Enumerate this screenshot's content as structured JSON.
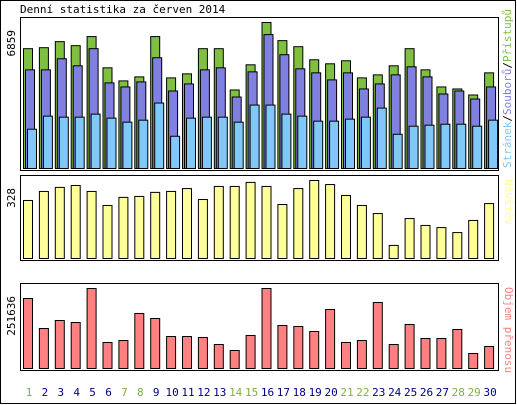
{
  "title": "Denní statistika za červen 2014",
  "legend_separator": "/",
  "chart_data": [
    {
      "type": "bar",
      "series": [
        {
          "name": "Přístupů",
          "color": "#80c040",
          "values": [
            5629,
            5676,
            5960,
            5771,
            6197,
            4730,
            4115,
            4304,
            6197,
            4257,
            4446,
            5629,
            5629,
            3689,
            4872,
            6859,
            6007,
            5723,
            5108,
            4919,
            5061,
            4257,
            4399,
            4825,
            5629,
            4635,
            3831,
            3737,
            3453,
            4494
          ]
        },
        {
          "name": "Souborů",
          "color": "#8080e0",
          "values": [
            4635,
            4635,
            5156,
            4825,
            5629,
            4021,
            3831,
            4068,
            5203,
            3642,
            3973,
            4635,
            4730,
            3358,
            4541,
            6291,
            5345,
            4683,
            4494,
            4162,
            4494,
            3737,
            3973,
            4399,
            4777,
            4304,
            3500,
            3642,
            3264,
            3831
          ]
        },
        {
          "name": "Stránek",
          "color": "#80c8f8",
          "values": [
            1845,
            2460,
            2412,
            2412,
            2554,
            2365,
            2176,
            2270,
            3075,
            1514,
            2365,
            2412,
            2412,
            2176,
            2980,
            2980,
            2554,
            2460,
            2223,
            2223,
            2318,
            2412,
            2838,
            1608,
            1987,
            2034,
            2081,
            2081,
            1987,
            2270
          ]
        }
      ],
      "ylim": [
        0,
        6859
      ],
      "yticks": [
        6859
      ]
    },
    {
      "type": "bar",
      "series": [
        {
          "name": "Návštěv",
          "color": "#ffff99",
          "values": [
            244,
            282,
            299,
            307,
            282,
            223,
            257,
            261,
            278,
            282,
            294,
            248,
            303,
            303,
            320,
            303,
            227,
            294,
            328,
            311,
            265,
            223,
            189,
            55,
            168,
            139,
            130,
            109,
            160,
            231
          ]
        }
      ],
      "ylim": [
        0,
        328
      ],
      "yticks": [
        328
      ]
    },
    {
      "type": "bar",
      "series": [
        {
          "name": "Objem přenosu",
          "color": "#ff8080",
          "values": [
            220177,
            125818,
            150982,
            144691,
            251636,
            81782,
            88073,
            173000,
            157273,
            100655,
            100655,
            97509,
            75491,
            56618,
            103800,
            251636,
            135255,
            132109,
            116382,
            185582,
            81782,
            88073,
            207600,
            75491,
            138400,
            94364,
            94364,
            122673,
            47182,
            69200
          ]
        }
      ],
      "ylim": [
        0,
        251636
      ],
      "yticks": [
        251636
      ],
      "categories": [
        "1",
        "2",
        "3",
        "4",
        "5",
        "6",
        "7",
        "8",
        "9",
        "10",
        "11",
        "12",
        "13",
        "14",
        "15",
        "16",
        "17",
        "18",
        "19",
        "20",
        "21",
        "22",
        "23",
        "24",
        "25",
        "26",
        "27",
        "28",
        "29",
        "30"
      ],
      "category_colors": [
        "#80b040",
        "#000080",
        "#000080",
        "#000080",
        "#000080",
        "#000080",
        "#80b040",
        "#80b040",
        "#000080",
        "#000080",
        "#000080",
        "#000080",
        "#000080",
        "#80b040",
        "#80b040",
        "#000080",
        "#000080",
        "#000080",
        "#000080",
        "#000080",
        "#80b040",
        "#80b040",
        "#000080",
        "#000080",
        "#000080",
        "#000080",
        "#000080",
        "#80b040",
        "#80b040",
        "#000080"
      ]
    }
  ]
}
